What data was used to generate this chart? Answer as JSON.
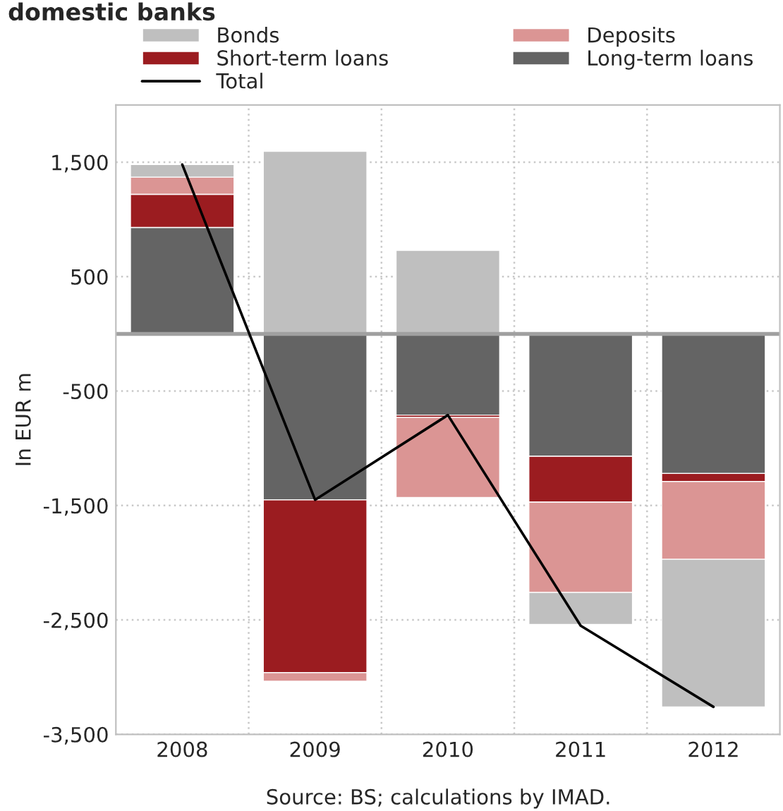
{
  "chart_data": {
    "type": "bar",
    "title": "domestic banks",
    "ylabel": "In EUR m",
    "stacked": true,
    "categories": [
      "2008",
      "2009",
      "2010",
      "2011",
      "2012"
    ],
    "series": [
      {
        "name": "Long-term loans",
        "color": "#646464",
        "values": [
          930,
          -1450,
          -710,
          -1070,
          -1220
        ]
      },
      {
        "name": "Short-term loans",
        "color": "#9b1c20",
        "values": [
          290,
          -1510,
          -20,
          -400,
          -70
        ]
      },
      {
        "name": "Deposits",
        "color": "#db9594",
        "values": [
          150,
          -75,
          -700,
          -790,
          -680
        ]
      },
      {
        "name": "Bonds",
        "color": "#bfbfbf",
        "values": [
          110,
          1595,
          730,
          -280,
          -1290
        ]
      },
      {
        "name": "Total",
        "type": "line",
        "color": "#000000",
        "values": [
          1480,
          -1450,
          -710,
          -2550,
          -3260
        ]
      }
    ],
    "ylim": [
      -3500,
      2000
    ],
    "yticks": [
      {
        "value": 1500,
        "label": "1,500"
      },
      500,
      -500,
      {
        "value": -1500,
        "label": "-1,500"
      },
      {
        "value": -2500,
        "label": "-2,500"
      },
      {
        "value": -3500,
        "label": "-3,500"
      }
    ],
    "grid": true,
    "legend": "top",
    "annotations": [
      "Source: BS; calculations by IMAD."
    ]
  }
}
